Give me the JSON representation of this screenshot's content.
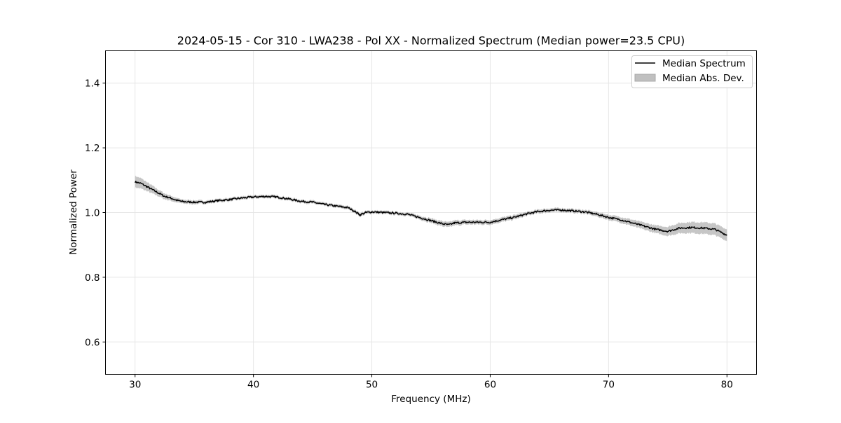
{
  "chart_data": {
    "type": "line",
    "title": "2024-05-15 - Cor 310 - LWA238 - Pol XX - Normalized Spectrum (Median power=23.5 CPU)",
    "xlabel": "Frequency (MHz)",
    "ylabel": "Normalized Power",
    "xlim": [
      27.5,
      82.5
    ],
    "ylim": [
      0.5,
      1.5
    ],
    "xticks": [
      30,
      40,
      50,
      60,
      70,
      80
    ],
    "xtick_labels": [
      "30",
      "40",
      "50",
      "60",
      "70",
      "80"
    ],
    "yticks": [
      0.6,
      0.8,
      1.0,
      1.2,
      1.4
    ],
    "ytick_labels": [
      "0.6",
      "0.8",
      "1.0",
      "1.2",
      "1.4"
    ],
    "grid": true,
    "legend_position": "top-right",
    "legend": {
      "line_label": "Median Spectrum",
      "band_label": "Median Abs. Dev."
    },
    "colors": {
      "line": "#000000",
      "band": "#c0c0c0",
      "grid": "#e6e6e6"
    },
    "series": [
      {
        "name": "Median Spectrum",
        "x": [
          30,
          30.5,
          31,
          31.5,
          32,
          32.5,
          33,
          33.5,
          34,
          35,
          36,
          37,
          38,
          39,
          40,
          41,
          42,
          43,
          44,
          45,
          46,
          47,
          48,
          48.5,
          49,
          49.5,
          50,
          51,
          52,
          53,
          54,
          55,
          56,
          56.5,
          57,
          58,
          59,
          60,
          61,
          62,
          63,
          64,
          65,
          66,
          67,
          68,
          69,
          70,
          71,
          72,
          73,
          74,
          75,
          76,
          77,
          78,
          79,
          80
        ],
        "y": [
          1.095,
          1.09,
          1.08,
          1.07,
          1.06,
          1.05,
          1.045,
          1.038,
          1.034,
          1.032,
          1.032,
          1.037,
          1.04,
          1.045,
          1.048,
          1.05,
          1.048,
          1.042,
          1.035,
          1.032,
          1.025,
          1.02,
          1.015,
          1.005,
          0.993,
          1.0,
          1.002,
          1.0,
          0.998,
          0.995,
          0.985,
          0.975,
          0.965,
          0.962,
          0.968,
          0.97,
          0.97,
          0.97,
          0.978,
          0.985,
          0.995,
          1.003,
          1.007,
          1.008,
          1.005,
          1.002,
          0.995,
          0.985,
          0.978,
          0.968,
          0.958,
          0.948,
          0.942,
          0.952,
          0.954,
          0.952,
          0.948,
          0.93
        ]
      }
    ],
    "band": {
      "name": "Median Abs. Dev.",
      "half_width": [
        0.018,
        0.016,
        0.014,
        0.012,
        0.01,
        0.009,
        0.008,
        0.007,
        0.006,
        0.006,
        0.005,
        0.005,
        0.005,
        0.005,
        0.005,
        0.005,
        0.005,
        0.005,
        0.005,
        0.005,
        0.005,
        0.005,
        0.005,
        0.005,
        0.006,
        0.005,
        0.005,
        0.005,
        0.005,
        0.005,
        0.006,
        0.007,
        0.008,
        0.008,
        0.008,
        0.007,
        0.007,
        0.007,
        0.007,
        0.007,
        0.006,
        0.006,
        0.006,
        0.006,
        0.006,
        0.006,
        0.007,
        0.008,
        0.009,
        0.01,
        0.011,
        0.012,
        0.014,
        0.016,
        0.017,
        0.018,
        0.018,
        0.018
      ]
    }
  }
}
